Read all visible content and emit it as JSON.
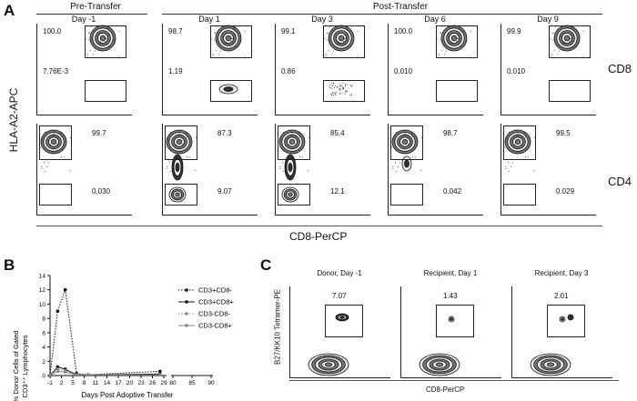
{
  "panels": {
    "A": "A",
    "B": "B",
    "C": "C"
  },
  "panel_a": {
    "pre_header": "Pre-Transfer",
    "post_header": "Post-Transfer",
    "y_label": "HLA-A2-APC",
    "x_label": "CD8-PerCP",
    "row_labels": [
      "CD8",
      "CD4"
    ],
    "columns": [
      {
        "title": "Day -1",
        "cd8_top": "100.0",
        "cd8_bot": "7.76E-3",
        "cd4_top": "99.7",
        "cd4_bot": "0.030"
      },
      {
        "title": "Day 1",
        "cd8_top": "98.7",
        "cd8_bot": "1.19",
        "cd4_top": "87.3",
        "cd4_bot": "9.07"
      },
      {
        "title": "Day 3",
        "cd8_top": "99.1",
        "cd8_bot": "0.86",
        "cd4_top": "85.4",
        "cd4_bot": "12.1"
      },
      {
        "title": "Day 6",
        "cd8_top": "100.0",
        "cd8_bot": "0.010",
        "cd4_top": "98.7",
        "cd4_bot": "0.042"
      },
      {
        "title": "Day 9",
        "cd8_top": "99.9",
        "cd8_bot": "0.010",
        "cd4_top": "99.5",
        "cd4_bot": "0.029"
      }
    ]
  },
  "panel_b": {
    "ylabel_line1": "% Donor Cells of Gated",
    "ylabel_line2": "CD3⁺⁺ Lymphocytes",
    "xlabel": "Days Post Adoptive Transfer"
  },
  "panel_c": {
    "y_label": "B27/KK10 Tetramer-PE",
    "x_label": "CD8-PerCP",
    "plots": [
      {
        "title": "Donor, Day -1",
        "pct": "7.07"
      },
      {
        "title": "Recipient, Day 1",
        "pct": "1.43"
      },
      {
        "title": "Recipient, Day 3",
        "pct": "2.01"
      }
    ]
  },
  "chart_data": {
    "type": "line",
    "xlabel": "Days Post Adoptive Transfer",
    "ylabel": "% Donor Cells of Gated CD3⁺⁺ Lymphocytes",
    "ylim": [
      0,
      14
    ],
    "yticks": [
      0,
      2,
      4,
      6,
      8,
      10,
      12,
      14
    ],
    "xticks": [
      -1,
      2,
      5,
      8,
      11,
      14,
      17,
      20,
      23,
      26,
      29,
      80,
      85,
      90
    ],
    "legend_position": "right",
    "series": [
      {
        "name": "CD3+CD8-",
        "x": [
          -1,
          1,
          3,
          6,
          9,
          28
        ],
        "y": [
          0,
          9,
          12,
          0.3,
          0.1,
          0.6
        ],
        "style": "dotted",
        "marker": "circle",
        "color": "#111111"
      },
      {
        "name": "CD3+CD8+",
        "x": [
          -1,
          1,
          3,
          6,
          9,
          28
        ],
        "y": [
          0,
          1.2,
          0.9,
          0.1,
          0.1,
          0.2
        ],
        "style": "solid",
        "marker": "circle",
        "color": "#111111"
      },
      {
        "name": "CD3-CD8-",
        "x": [
          -1,
          1,
          3,
          6,
          9,
          28
        ],
        "y": [
          0,
          0.9,
          0.7,
          0.1,
          0.1,
          0.1
        ],
        "style": "dotted",
        "marker": "square",
        "color": "#888888"
      },
      {
        "name": "CD3-CD8+",
        "x": [
          -1,
          1,
          3,
          6,
          9,
          28
        ],
        "y": [
          0,
          0.6,
          0.5,
          0.1,
          0.1,
          0.1
        ],
        "style": "solid",
        "marker": "triangle",
        "color": "#888888"
      }
    ]
  }
}
